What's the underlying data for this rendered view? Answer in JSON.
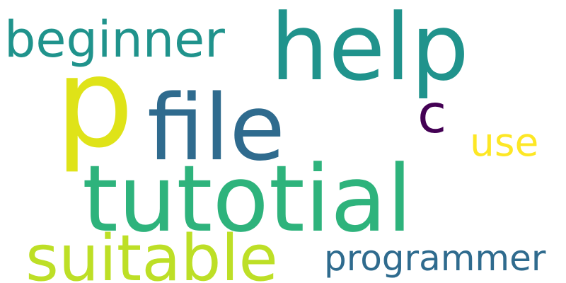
{
  "words": [
    {
      "id": "p",
      "text": "p",
      "color": "#dfe318"
    },
    {
      "id": "help",
      "text": "help",
      "color": "#20938c"
    },
    {
      "id": "beginner",
      "text": "beginner",
      "color": "#20938c"
    },
    {
      "id": "file",
      "text": "file",
      "color": "#2f6b8e"
    },
    {
      "id": "c",
      "text": "c",
      "color": "#440154"
    },
    {
      "id": "use",
      "text": "use",
      "color": "#fde725"
    },
    {
      "id": "tutotial",
      "text": "tutotial",
      "color": "#2eb37c"
    },
    {
      "id": "suitable",
      "text": "suitable",
      "color": "#bddf26"
    },
    {
      "id": "programmer",
      "text": "programmer",
      "color": "#2f6b8e"
    }
  ]
}
